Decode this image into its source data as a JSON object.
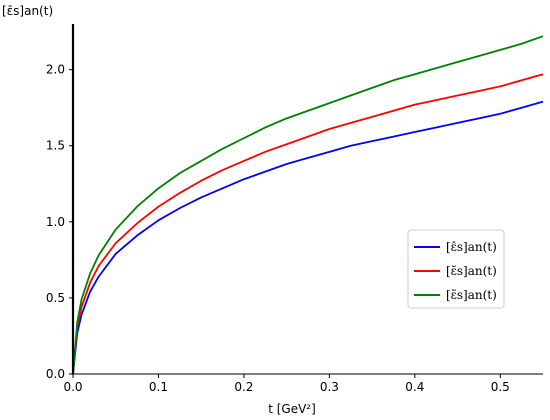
{
  "chart_data": {
    "type": "line",
    "ylabel": "[ε̄s]an(t)",
    "xlabel": "t [GeV²]",
    "xlim": [
      0.0,
      0.55
    ],
    "ylim": [
      0.0,
      2.3
    ],
    "x_ticks": [
      0.0,
      0.1,
      0.2,
      0.3,
      0.4,
      0.5
    ],
    "x_tick_labels": [
      "0.0",
      "0.1",
      "0.2",
      "0.3",
      "0.4",
      "0.5"
    ],
    "y_ticks": [
      0.0,
      0.5,
      1.0,
      1.5,
      2.0
    ],
    "y_tick_labels": [
      "0.0",
      "0.5",
      "1.0",
      "1.5",
      "2.0"
    ],
    "grid": false,
    "legend_position": "right",
    "x": [
      0.0,
      0.005,
      0.01,
      0.02,
      0.03,
      0.05,
      0.075,
      0.1,
      0.125,
      0.15,
      0.175,
      0.2,
      0.225,
      0.25,
      0.275,
      0.3,
      0.325,
      0.35,
      0.375,
      0.4,
      0.425,
      0.45,
      0.475,
      0.5,
      0.525,
      0.55
    ],
    "series": [
      {
        "name": "[ε̂s]an(t)",
        "color": "#0000ff",
        "values": [
          0.0,
          0.27,
          0.39,
          0.54,
          0.64,
          0.79,
          0.91,
          1.01,
          1.09,
          1.16,
          1.22,
          1.28,
          1.33,
          1.38,
          1.42,
          1.46,
          1.5,
          1.53,
          1.56,
          1.59,
          1.62,
          1.65,
          1.68,
          1.71,
          1.75,
          1.79
        ]
      },
      {
        "name": "[ε̆s]an(t)",
        "color": "#ff0000",
        "values": [
          0.0,
          0.31,
          0.44,
          0.6,
          0.71,
          0.86,
          0.99,
          1.1,
          1.19,
          1.27,
          1.34,
          1.4,
          1.46,
          1.51,
          1.56,
          1.61,
          1.65,
          1.69,
          1.73,
          1.77,
          1.8,
          1.83,
          1.86,
          1.89,
          1.93,
          1.97
        ]
      },
      {
        "name": "[ε̃s]an(t)",
        "color": "#008000",
        "values": [
          0.0,
          0.34,
          0.49,
          0.66,
          0.78,
          0.95,
          1.1,
          1.22,
          1.32,
          1.4,
          1.48,
          1.55,
          1.62,
          1.68,
          1.73,
          1.78,
          1.83,
          1.88,
          1.93,
          1.97,
          2.01,
          2.05,
          2.09,
          2.13,
          2.17,
          2.22
        ]
      }
    ]
  }
}
